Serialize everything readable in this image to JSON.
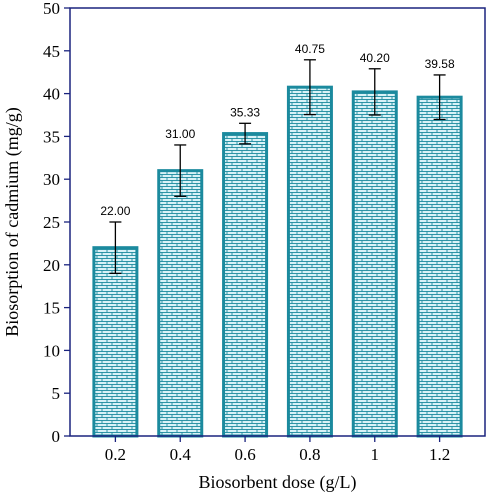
{
  "chart_data": {
    "type": "bar",
    "title": "",
    "xlabel": "Biosorbent dose (g/L)",
    "ylabel": "Biosorption of cadmium  (mg/g)",
    "categories": [
      "0.2",
      "0.4",
      "0.6",
      "0.8",
      "1",
      "1.2"
    ],
    "values": [
      22.0,
      31.0,
      35.33,
      40.75,
      40.2,
      39.58
    ],
    "value_labels": [
      "22.00",
      "31.00",
      "35.33",
      "40.75",
      "40.20",
      "39.58"
    ],
    "error": [
      3.0,
      3.0,
      1.2,
      3.2,
      2.7,
      2.6
    ],
    "ylim": [
      0,
      50
    ],
    "yticks": [
      "0",
      "5",
      "10",
      "15",
      "20",
      "25",
      "30",
      "35",
      "40",
      "45",
      "50"
    ],
    "grid": false,
    "legend": "none",
    "bar_fill_color": "#d9f2f7",
    "bar_edge_color": "#1b8a9e",
    "bar_pattern": "brick",
    "axis_color": "#1a237e"
  }
}
